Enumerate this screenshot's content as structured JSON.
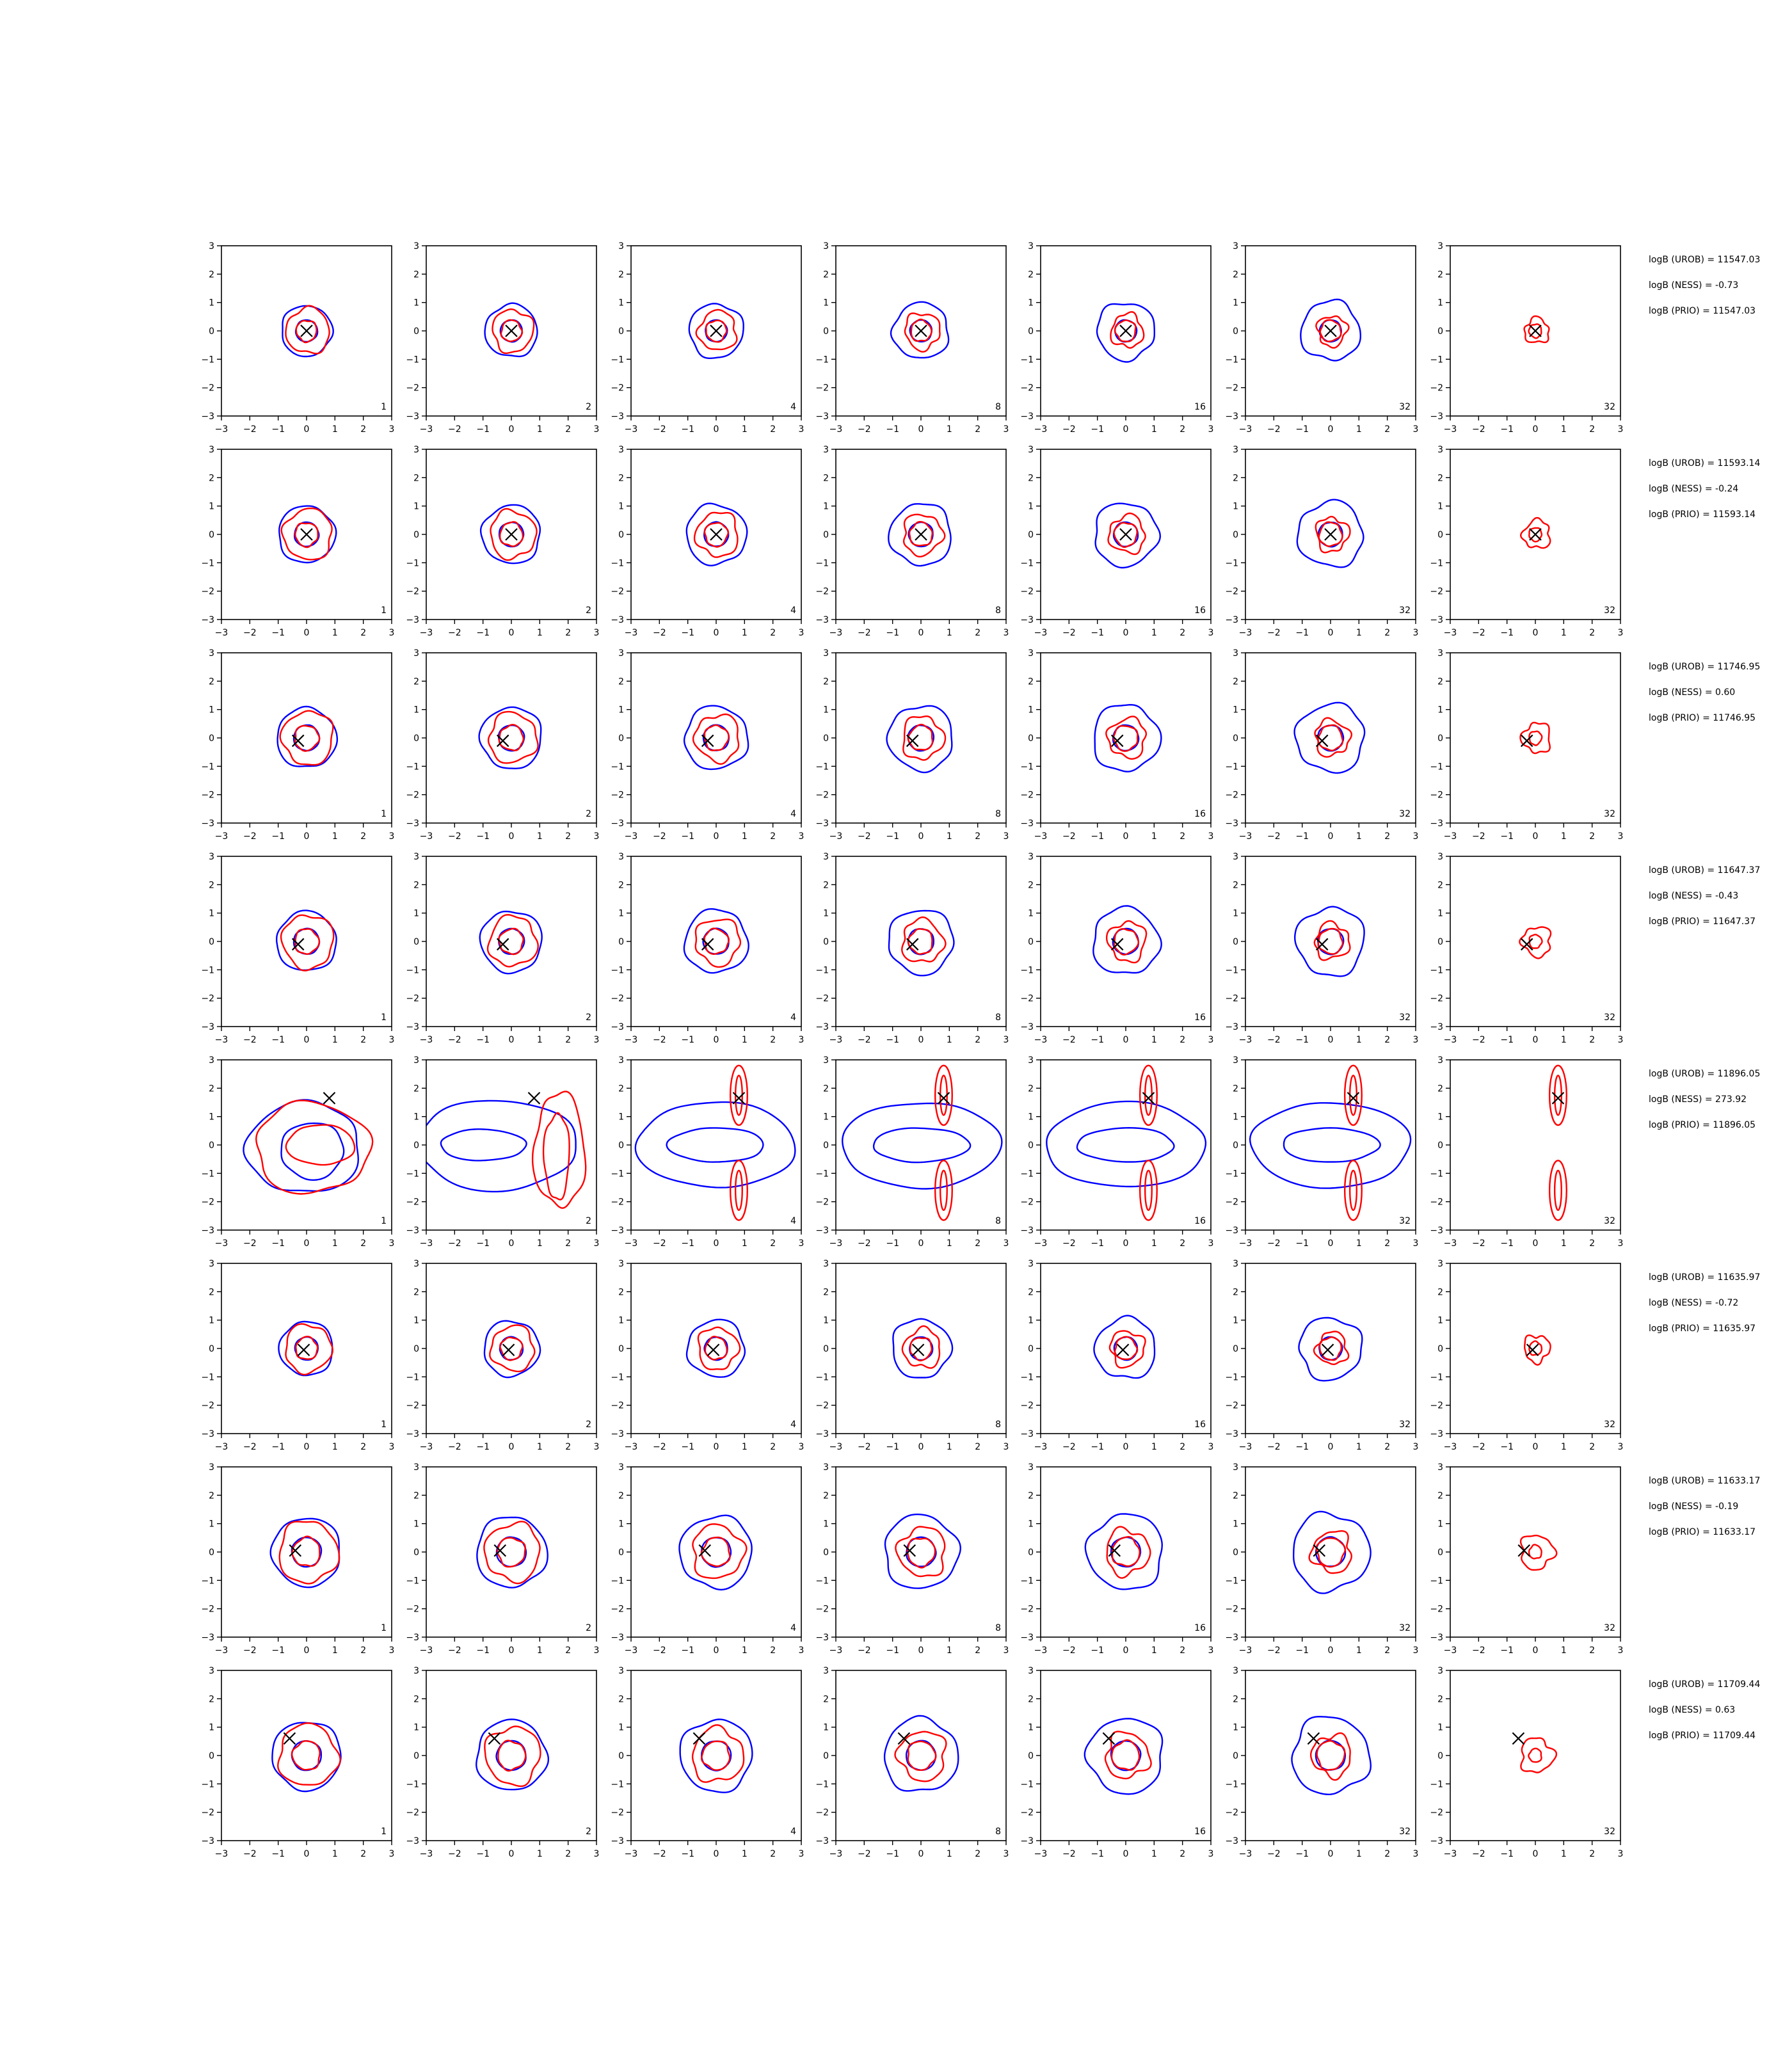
{
  "chart_data": {
    "type": "contour-grid",
    "xlim": [
      -3,
      3
    ],
    "ylim": [
      -3,
      3
    ],
    "xticks": [
      "−3",
      "−2",
      "−1",
      "0",
      "1",
      "2",
      "3"
    ],
    "yticks": [
      "3",
      "2",
      "1",
      "0",
      "−1",
      "−2",
      "−3"
    ],
    "grid": false,
    "colors": {
      "blue": "#0000ff",
      "red": "#ff0000",
      "marker": "#000000"
    },
    "columns": [
      {
        "label": "1"
      },
      {
        "label": "2"
      },
      {
        "label": "4"
      },
      {
        "label": "8"
      },
      {
        "label": "16"
      },
      {
        "label": "32"
      },
      {
        "label": "32"
      }
    ],
    "rows": [
      {
        "marker": [
          0,
          0
        ],
        "kind": "normal",
        "scale": 0.85,
        "stats": [
          "logB (UROB) = 11547.03",
          "logB (NESS) = -0.73",
          "logB (PRIO) = 11547.03"
        ]
      },
      {
        "marker": [
          0,
          0
        ],
        "kind": "normal",
        "scale": 0.95,
        "stats": [
          "logB (UROB) = 11593.14",
          "logB (NESS) = -0.24",
          "logB (PRIO) = 11593.14"
        ]
      },
      {
        "marker": [
          -0.3,
          -0.1
        ],
        "kind": "normal",
        "scale": 1.0,
        "stats": [
          "logB (UROB) = 11746.95",
          "logB (NESS) = 0.60",
          "logB (PRIO) = 11746.95"
        ]
      },
      {
        "marker": [
          -0.3,
          -0.1
        ],
        "kind": "normal",
        "scale": 1.0,
        "stats": [
          "logB (UROB) = 11647.37",
          "logB (NESS) = -0.43",
          "logB (PRIO) = 11647.37"
        ]
      },
      {
        "marker": [
          0.8,
          1.65
        ],
        "kind": "wide",
        "stats": [
          "logB (UROB) = 11896.05",
          "logB (NESS) = 273.92",
          "logB (PRIO) = 11896.05"
        ]
      },
      {
        "marker": [
          -0.1,
          -0.05
        ],
        "kind": "normal",
        "scale": 0.9,
        "stats": [
          "logB (UROB) = 11635.97",
          "logB (NESS) = -0.72",
          "logB (PRIO) = 11635.97"
        ]
      },
      {
        "marker": [
          -0.4,
          0.05
        ],
        "kind": "normal",
        "scale": 1.15,
        "stats": [
          "logB (UROB) = 11633.17",
          "logB (NESS) = -0.19",
          "logB (PRIO) = 11633.17"
        ]
      },
      {
        "marker": [
          -0.6,
          0.6
        ],
        "kind": "normal",
        "scale": 1.15,
        "stats": [
          "logB (UROB) = 11709.44",
          "logB (NESS) = 0.63",
          "logB (PRIO) = 11709.44"
        ]
      }
    ]
  }
}
